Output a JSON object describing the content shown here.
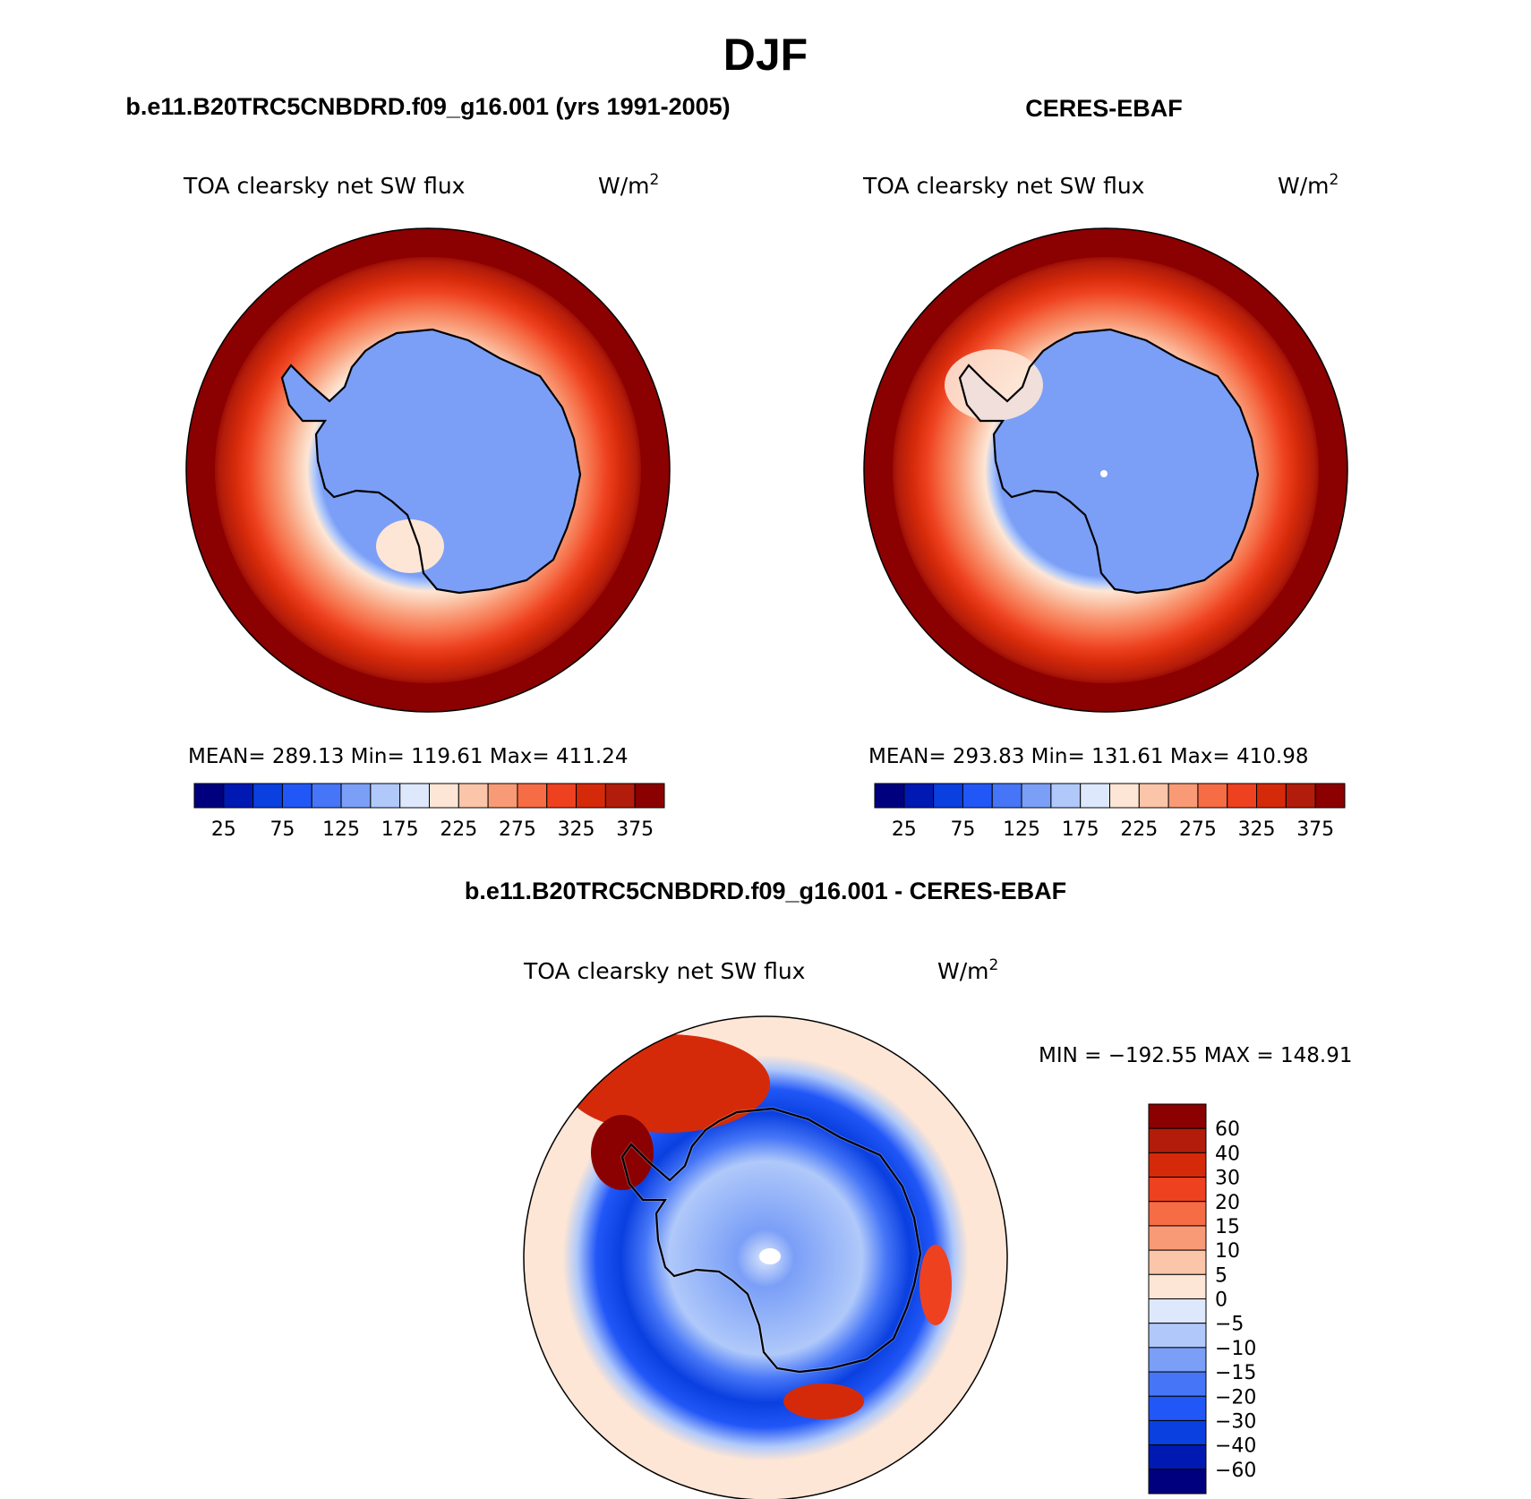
{
  "figure": {
    "title": "DJF"
  },
  "panels": [
    {
      "heading": "b.e11.B20TRC5CNBDRD.f09_g16.001 (yrs 1991-2005)",
      "variable": "TOA clearsky net SW flux",
      "units_base": "W/m",
      "units_exp": "2",
      "stats": "MEAN= 289.13   Min= 119.61   Max= 411.24"
    },
    {
      "heading": "CERES-EBAF",
      "variable": "TOA clearsky net SW flux",
      "units_base": "W/m",
      "units_exp": "2",
      "stats": "MEAN= 293.83   Min= 131.61   Max= 410.98"
    },
    {
      "heading": "b.e11.B20TRC5CNBDRD.f09_g16.001 - CERES-EBAF",
      "variable": "TOA clearsky net SW flux",
      "units_base": "W/m",
      "units_exp": "2",
      "stats": "MIN = −192.55 MAX = 148.91"
    }
  ],
  "chart_data": [
    {
      "type": "heatmap",
      "projection": "south-polar-stereographic",
      "title": "TOA clearsky net SW flux",
      "units": "W/m2",
      "stats": {
        "mean": 289.13,
        "min": 119.61,
        "max": 411.24
      },
      "colorbar": {
        "orientation": "horizontal",
        "tick_labels": [
          "25",
          "75",
          "125",
          "175",
          "225",
          "275",
          "325",
          "375"
        ],
        "colors": [
          "#00007f",
          "#0019b3",
          "#0a3fe0",
          "#2257f7",
          "#4676f7",
          "#7b9ff7",
          "#b0c9fa",
          "#dde8fd",
          "#fde6d6",
          "#fbc5a9",
          "#f99a76",
          "#f56c45",
          "#ee4120",
          "#d52a0a",
          "#b21c0a",
          "#8b0000"
        ]
      }
    },
    {
      "type": "heatmap",
      "projection": "south-polar-stereographic",
      "title": "TOA clearsky net SW flux",
      "units": "W/m2",
      "stats": {
        "mean": 293.83,
        "min": 131.61,
        "max": 410.98
      },
      "colorbar": {
        "orientation": "horizontal",
        "tick_labels": [
          "25",
          "75",
          "125",
          "175",
          "225",
          "275",
          "325",
          "375"
        ],
        "colors": [
          "#00007f",
          "#0019b3",
          "#0a3fe0",
          "#2257f7",
          "#4676f7",
          "#7b9ff7",
          "#b0c9fa",
          "#dde8fd",
          "#fde6d6",
          "#fbc5a9",
          "#f99a76",
          "#f56c45",
          "#ee4120",
          "#d52a0a",
          "#b21c0a",
          "#8b0000"
        ]
      }
    },
    {
      "type": "heatmap",
      "projection": "south-polar-stereographic",
      "title": "TOA clearsky net SW flux",
      "units": "W/m2",
      "stats": {
        "min": -192.55,
        "max": 148.91
      },
      "colorbar": {
        "orientation": "vertical",
        "tick_labels": [
          "60",
          "40",
          "30",
          "20",
          "15",
          "10",
          "5",
          "0",
          "−5",
          "−10",
          "−15",
          "−20",
          "−30",
          "−40",
          "−60"
        ],
        "colors": [
          "#8b0000",
          "#b21c0a",
          "#d52a0a",
          "#ee4120",
          "#f56c45",
          "#f99a76",
          "#fbc5a9",
          "#fde6d6",
          "#dde8fd",
          "#b0c9fa",
          "#7b9ff7",
          "#4676f7",
          "#2257f7",
          "#0a3fe0",
          "#0019b3",
          "#00007f"
        ]
      }
    }
  ]
}
